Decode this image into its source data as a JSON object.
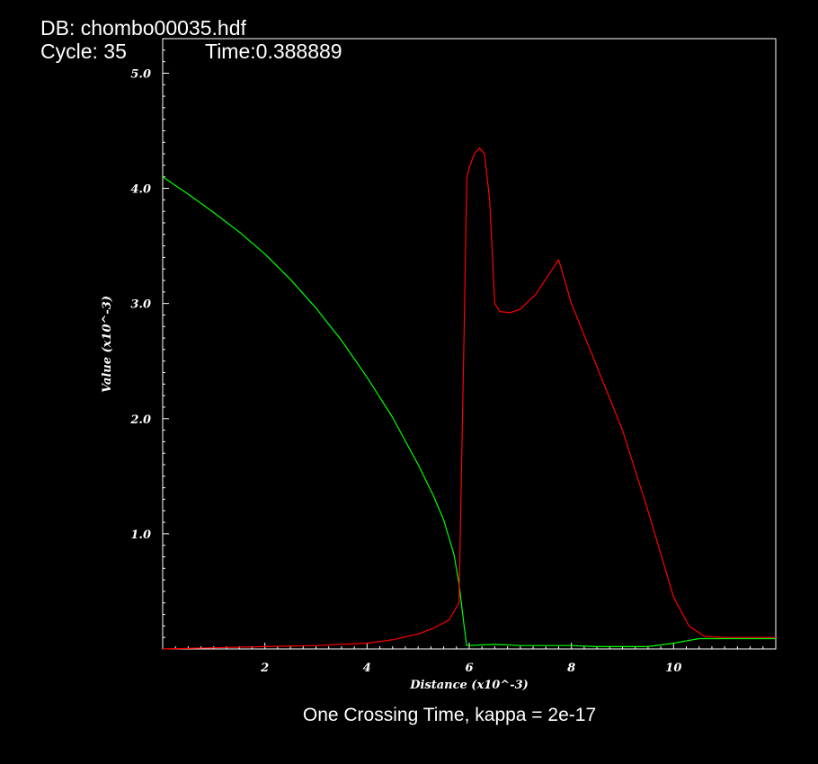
{
  "header": {
    "db": "DB: chombo00035.hdf",
    "cycle": "Cycle: 35",
    "time": "Time:0.388889"
  },
  "caption": "One Crossing Time, kappa = 2e-17",
  "chart_data": {
    "type": "line",
    "title": "",
    "xlabel": "Distance (x10^-3)",
    "ylabel": "Value (x10^-3)",
    "xlim": [
      0,
      12
    ],
    "ylim": [
      0,
      5.3
    ],
    "xticks": [
      2,
      4,
      6,
      8,
      10
    ],
    "xtick_labels": [
      "2",
      "4",
      "6",
      "8",
      "10"
    ],
    "yticks": [
      1.0,
      2.0,
      3.0,
      4.0,
      5.0
    ],
    "ytick_labels": [
      "1.0",
      "2.0",
      "3.0",
      "4.0",
      "5.0"
    ],
    "grid": false,
    "legend": "none",
    "series": [
      {
        "color": "#00ff00",
        "x": [
          0.0,
          0.5,
          1.0,
          1.5,
          2.0,
          2.5,
          3.0,
          3.5,
          4.0,
          4.5,
          5.0,
          5.3,
          5.5,
          5.7,
          5.8,
          5.9,
          5.95,
          6.0,
          6.5,
          7.0,
          7.5,
          8.0,
          8.5,
          9.0,
          9.5,
          10.0,
          10.5,
          11.0,
          11.5,
          12.0
        ],
        "y": [
          4.1,
          3.95,
          3.79,
          3.62,
          3.43,
          3.21,
          2.96,
          2.68,
          2.36,
          2.01,
          1.6,
          1.33,
          1.12,
          0.82,
          0.57,
          0.2,
          0.03,
          0.03,
          0.04,
          0.03,
          0.03,
          0.03,
          0.02,
          0.02,
          0.02,
          0.05,
          0.09,
          0.09,
          0.09,
          0.09
        ]
      },
      {
        "color": "#ff0000",
        "x": [
          0.0,
          1.0,
          2.0,
          3.0,
          4.0,
          4.5,
          5.0,
          5.3,
          5.6,
          5.8,
          5.9,
          5.95,
          6.0,
          6.1,
          6.2,
          6.3,
          6.4,
          6.5,
          6.6,
          6.8,
          7.0,
          7.3,
          7.6,
          7.75,
          8.0,
          8.5,
          9.0,
          9.5,
          10.0,
          10.3,
          10.6,
          11.0,
          11.5,
          12.0
        ],
        "y": [
          0.0,
          0.01,
          0.02,
          0.03,
          0.05,
          0.08,
          0.13,
          0.18,
          0.25,
          0.4,
          2.75,
          4.08,
          4.18,
          4.3,
          4.35,
          4.3,
          3.9,
          3.0,
          2.93,
          2.92,
          2.95,
          3.08,
          3.28,
          3.38,
          3.0,
          2.45,
          1.9,
          1.2,
          0.45,
          0.2,
          0.11,
          0.1,
          0.1,
          0.1
        ]
      }
    ]
  }
}
